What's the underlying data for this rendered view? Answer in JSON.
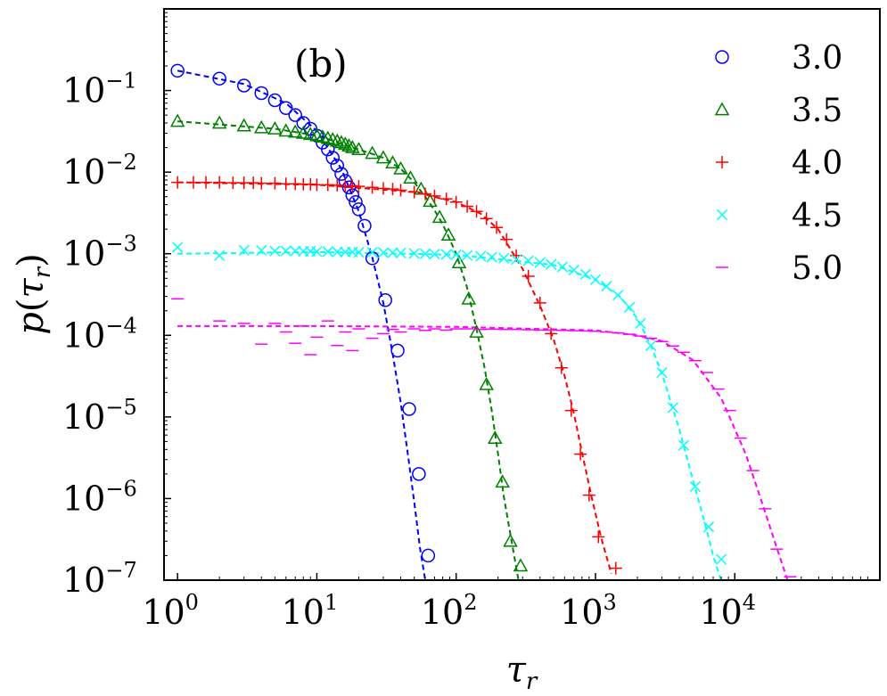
{
  "chart_data": {
    "type": "scatter",
    "panel_label": "(b)",
    "xlabel": "τ_r",
    "ylabel": "p(τ_r)",
    "xscale": "log",
    "yscale": "log",
    "xlim": [
      0.8,
      110000
    ],
    "ylim": [
      1e-07,
      1.0
    ],
    "xticks": [
      {
        "value": 1,
        "base": "10",
        "exp": "0"
      },
      {
        "value": 10,
        "base": "10",
        "exp": "1"
      },
      {
        "value": 100,
        "base": "10",
        "exp": "2"
      },
      {
        "value": 1000,
        "base": "10",
        "exp": "3"
      },
      {
        "value": 10000,
        "base": "10",
        "exp": "4"
      }
    ],
    "yticks": [
      {
        "value": 0.1,
        "base": "10",
        "exp": "−1"
      },
      {
        "value": 0.01,
        "base": "10",
        "exp": "−2"
      },
      {
        "value": 0.001,
        "base": "10",
        "exp": "−3"
      },
      {
        "value": 0.0001,
        "base": "10",
        "exp": "−4"
      },
      {
        "value": 1e-05,
        "base": "10",
        "exp": "−5"
      },
      {
        "value": 1e-06,
        "base": "10",
        "exp": "−6"
      },
      {
        "value": 1e-07,
        "base": "10",
        "exp": "−7"
      }
    ],
    "legend_position": "top-right",
    "series": [
      {
        "name": "3.0",
        "color": "#0000ff",
        "marker": "circle",
        "points": [
          [
            1,
            0.175
          ],
          [
            2,
            0.14
          ],
          [
            3,
            0.115
          ],
          [
            4,
            0.093
          ],
          [
            5,
            0.076
          ],
          [
            6,
            0.061
          ],
          [
            7,
            0.05
          ],
          [
            8,
            0.04
          ],
          [
            9,
            0.034
          ],
          [
            10,
            0.028
          ],
          [
            11,
            0.023
          ],
          [
            12,
            0.019
          ],
          [
            13,
            0.015
          ],
          [
            14,
            0.012
          ],
          [
            15,
            0.0095
          ],
          [
            16,
            0.0078
          ],
          [
            17,
            0.0065
          ],
          [
            18,
            0.0052
          ],
          [
            19,
            0.0043
          ],
          [
            20,
            0.0035
          ],
          [
            22,
            0.0022
          ],
          [
            25,
            0.00088
          ],
          [
            31,
            0.00027
          ],
          [
            38,
            6.5e-05
          ],
          [
            46,
            1.25e-05
          ],
          [
            54,
            2e-06
          ],
          [
            63,
            2e-07
          ]
        ],
        "fit": [
          [
            1,
            0.175
          ],
          [
            3,
            0.12
          ],
          [
            6,
            0.07
          ],
          [
            10,
            0.032
          ],
          [
            15,
            0.011
          ],
          [
            20,
            0.0033
          ],
          [
            25,
            0.0009
          ],
          [
            30,
            0.00025
          ],
          [
            35,
            6e-05
          ],
          [
            40,
            1.5e-05
          ],
          [
            45,
            3.5e-06
          ],
          [
            50,
            9e-07
          ],
          [
            55,
            2.5e-07
          ],
          [
            60,
            1e-07
          ]
        ]
      },
      {
        "name": "3.5",
        "color": "#008000",
        "marker": "triangle",
        "points": [
          [
            1,
            0.042
          ],
          [
            2,
            0.04
          ],
          [
            3,
            0.037
          ],
          [
            4,
            0.035
          ],
          [
            5,
            0.034
          ],
          [
            6,
            0.032
          ],
          [
            7,
            0.031
          ],
          [
            8,
            0.03
          ],
          [
            9,
            0.029
          ],
          [
            10,
            0.028
          ],
          [
            11,
            0.027
          ],
          [
            12,
            0.026
          ],
          [
            13,
            0.025
          ],
          [
            14,
            0.024
          ],
          [
            15,
            0.023
          ],
          [
            16,
            0.022
          ],
          [
            17,
            0.021
          ],
          [
            18,
            0.02
          ],
          [
            20,
            0.019
          ],
          [
            25,
            0.017
          ],
          [
            30,
            0.015
          ],
          [
            35,
            0.013
          ],
          [
            40,
            0.011
          ],
          [
            47,
            0.0085
          ],
          [
            56,
            0.0062
          ],
          [
            65,
            0.0044
          ],
          [
            76,
            0.0028
          ],
          [
            88,
            0.0017
          ],
          [
            105,
            0.00078
          ],
          [
            123,
            0.00028
          ],
          [
            140,
            0.00011
          ],
          [
            165,
            2.5e-05
          ],
          [
            190,
            5.5e-06
          ],
          [
            215,
            1.6e-06
          ],
          [
            245,
            3e-07
          ],
          [
            290,
            1.5e-07
          ]
        ],
        "fit": [
          [
            1,
            0.042
          ],
          [
            5,
            0.034
          ],
          [
            10,
            0.028
          ],
          [
            20,
            0.019
          ],
          [
            30,
            0.015
          ],
          [
            40,
            0.011
          ],
          [
            50,
            0.0075
          ],
          [
            60,
            0.005
          ],
          [
            70,
            0.0034
          ],
          [
            80,
            0.0023
          ],
          [
            90,
            0.0015
          ],
          [
            100,
            0.001
          ],
          [
            120,
            0.00038
          ],
          [
            140,
            0.00012
          ],
          [
            160,
            4e-05
          ],
          [
            180,
            1.2e-05
          ],
          [
            200,
            3.5e-06
          ],
          [
            220,
            1.05e-06
          ],
          [
            250,
            3e-07
          ],
          [
            280,
            1e-07
          ]
        ]
      },
      {
        "name": "4.0",
        "color": "#ff0000",
        "marker": "plus",
        "points": [
          [
            1,
            0.0075
          ],
          [
            1.3,
            0.0075
          ],
          [
            1.6,
            0.0075
          ],
          [
            2,
            0.0075
          ],
          [
            2.5,
            0.0074
          ],
          [
            3,
            0.0074
          ],
          [
            3.5,
            0.0074
          ],
          [
            4,
            0.0073
          ],
          [
            5,
            0.0073
          ],
          [
            6,
            0.0072
          ],
          [
            7,
            0.0072
          ],
          [
            8,
            0.0071
          ],
          [
            9,
            0.0071
          ],
          [
            10,
            0.007
          ],
          [
            12,
            0.007
          ],
          [
            14,
            0.0069
          ],
          [
            16,
            0.0068
          ],
          [
            18,
            0.0068
          ],
          [
            20,
            0.0067
          ],
          [
            25,
            0.0065
          ],
          [
            30,
            0.0063
          ],
          [
            35,
            0.0062
          ],
          [
            40,
            0.006
          ],
          [
            50,
            0.0057
          ],
          [
            60,
            0.0054
          ],
          [
            70,
            0.0051
          ],
          [
            85,
            0.0047
          ],
          [
            100,
            0.0043
          ],
          [
            120,
            0.0038
          ],
          [
            140,
            0.0033
          ],
          [
            165,
            0.0027
          ],
          [
            195,
            0.0021
          ],
          [
            230,
            0.0015
          ],
          [
            270,
            0.00095
          ],
          [
            330,
            0.00053
          ],
          [
            400,
            0.00025
          ],
          [
            480,
            0.000105
          ],
          [
            570,
            4e-05
          ],
          [
            670,
            1.2e-05
          ],
          [
            780,
            3.5e-06
          ],
          [
            900,
            1.1e-06
          ],
          [
            1050,
            3.4e-07
          ],
          [
            1400,
            1.4e-07
          ]
        ],
        "fit": [
          [
            1,
            0.0075
          ],
          [
            10,
            0.007
          ],
          [
            50,
            0.0057
          ],
          [
            100,
            0.0043
          ],
          [
            150,
            0.0031
          ],
          [
            200,
            0.002
          ],
          [
            300,
            0.00065
          ],
          [
            400,
            0.00023
          ],
          [
            500,
            9e-05
          ],
          [
            600,
            3.2e-05
          ],
          [
            700,
            1.1e-05
          ],
          [
            800,
            3.7e-06
          ],
          [
            950,
            9.5e-07
          ],
          [
            1100,
            3.3e-07
          ],
          [
            1300,
            1.2e-07
          ]
        ]
      },
      {
        "name": "4.5",
        "color": "#00ffff",
        "marker": "x",
        "points": [
          [
            1,
            0.0012
          ],
          [
            2,
            0.00095
          ],
          [
            3,
            0.0011
          ],
          [
            4,
            0.0011
          ],
          [
            5,
            0.00108
          ],
          [
            6,
            0.00108
          ],
          [
            7,
            0.00108
          ],
          [
            8,
            0.00107
          ],
          [
            9,
            0.00107
          ],
          [
            10,
            0.00106
          ],
          [
            12,
            0.00106
          ],
          [
            14,
            0.00105
          ],
          [
            16,
            0.00105
          ],
          [
            18,
            0.00105
          ],
          [
            20,
            0.00104
          ],
          [
            25,
            0.00104
          ],
          [
            30,
            0.00103
          ],
          [
            35,
            0.00103
          ],
          [
            40,
            0.00102
          ],
          [
            50,
            0.00101
          ],
          [
            60,
            0.001
          ],
          [
            70,
            0.00099
          ],
          [
            85,
            0.00098
          ],
          [
            100,
            0.00097
          ],
          [
            120,
            0.00095
          ],
          [
            150,
            0.00093
          ],
          [
            180,
            0.00091
          ],
          [
            220,
            0.00088
          ],
          [
            270,
            0.00085
          ],
          [
            330,
            0.00082
          ],
          [
            400,
            0.00078
          ],
          [
            480,
            0.00074
          ],
          [
            580,
            0.00069
          ],
          [
            700,
            0.00063
          ],
          [
            850,
            0.00056
          ],
          [
            1000,
            0.00048
          ],
          [
            1200,
            0.0004
          ],
          [
            1450,
            0.00031
          ],
          [
            1750,
            0.00022
          ],
          [
            2100,
            0.00014
          ],
          [
            2500,
            7.5e-05
          ],
          [
            3000,
            3.5e-05
          ],
          [
            3600,
            1.3e-05
          ],
          [
            4300,
            4.5e-06
          ],
          [
            5200,
            1.4e-06
          ],
          [
            6500,
            4.5e-07
          ],
          [
            8000,
            1.8e-07
          ]
        ],
        "fit": [
          [
            1,
            0.001
          ],
          [
            10,
            0.00105
          ],
          [
            100,
            0.00097
          ],
          [
            500,
            0.00073
          ],
          [
            1000,
            0.00048
          ],
          [
            1500,
            0.0003
          ],
          [
            2000,
            0.00016
          ],
          [
            2500,
            7.5e-05
          ],
          [
            3000,
            3.4e-05
          ],
          [
            4000,
            7e-06
          ],
          [
            5000,
            1.7e-06
          ],
          [
            6000,
            5.5e-07
          ],
          [
            7000,
            2e-07
          ],
          [
            8500,
            7e-08
          ]
        ]
      },
      {
        "name": "5.0",
        "color": "#ff00ff",
        "marker": "hline",
        "points": [
          [
            1,
            0.00028
          ],
          [
            2,
            0.00015
          ],
          [
            3,
            0.00014
          ],
          [
            4,
            7.8e-05
          ],
          [
            5,
            0.00014
          ],
          [
            6,
            0.00011
          ],
          [
            7,
            8e-05
          ],
          [
            8,
            0.00013
          ],
          [
            9,
            5.8e-05
          ],
          [
            10,
            9.5e-05
          ],
          [
            12,
            0.00015
          ],
          [
            14,
            7.5e-05
          ],
          [
            16,
            0.00011
          ],
          [
            18,
            6.5e-05
          ],
          [
            20,
            0.00012
          ],
          [
            25,
            9.2e-05
          ],
          [
            30,
            0.000105
          ],
          [
            35,
            0.000118
          ],
          [
            40,
            0.00011
          ],
          [
            50,
            0.00012
          ],
          [
            60,
            0.000115
          ],
          [
            70,
            0.00012
          ],
          [
            85,
            0.000116
          ],
          [
            100,
            0.00012
          ],
          [
            120,
            0.00012
          ],
          [
            150,
            0.000118
          ],
          [
            180,
            0.000119
          ],
          [
            220,
            0.000118
          ],
          [
            270,
            0.000118
          ],
          [
            330,
            0.000117
          ],
          [
            400,
            0.000116
          ],
          [
            480,
            0.000116
          ],
          [
            580,
            0.000115
          ],
          [
            700,
            0.000114
          ],
          [
            850,
            0.000113
          ],
          [
            1000,
            0.000112
          ],
          [
            1200,
            0.00011
          ],
          [
            1450,
            0.000107
          ],
          [
            1750,
            0.000103
          ],
          [
            2100,
            9.8e-05
          ],
          [
            2500,
            9.2e-05
          ],
          [
            3000,
            8.4e-05
          ],
          [
            3600,
            7.4e-05
          ],
          [
            4300,
            6.2e-05
          ],
          [
            5200,
            4.9e-05
          ],
          [
            6300,
            3.5e-05
          ],
          [
            7600,
            2.2e-05
          ],
          [
            9200,
            1.2e-05
          ],
          [
            11000,
            5.5e-06
          ],
          [
            13500,
            2.2e-06
          ],
          [
            16500,
            7.5e-07
          ],
          [
            20000,
            2.4e-07
          ],
          [
            25000,
            1.1e-07
          ]
        ],
        "fit": [
          [
            1,
            0.00013
          ],
          [
            10,
            0.00013
          ],
          [
            100,
            0.000127
          ],
          [
            1000,
            0.000115
          ],
          [
            2000,
            0.0001
          ],
          [
            3000,
            8.5e-05
          ],
          [
            5000,
            5e-05
          ],
          [
            8000,
            1.7e-05
          ],
          [
            12000,
            3.5e-06
          ],
          [
            16000,
            8e-07
          ],
          [
            20000,
            2.5e-07
          ],
          [
            25000,
            8e-08
          ]
        ]
      }
    ]
  }
}
